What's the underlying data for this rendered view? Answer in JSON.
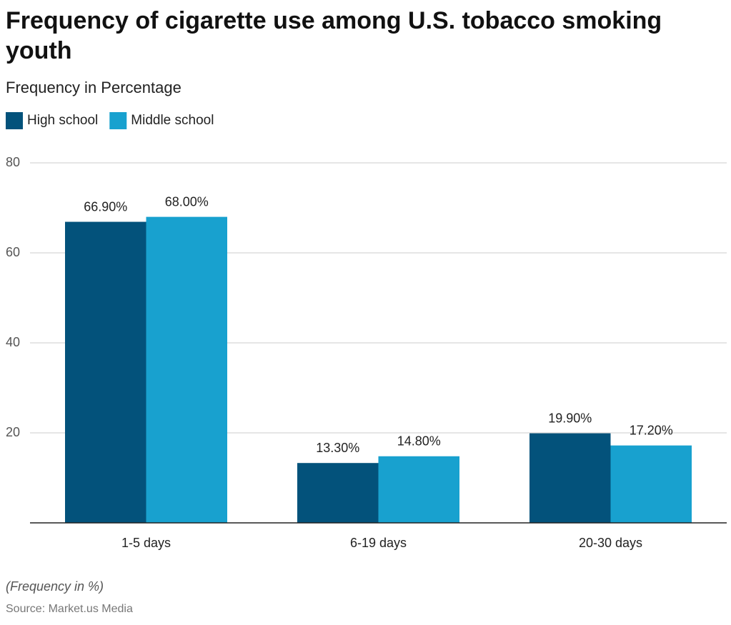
{
  "chart_data": {
    "type": "bar",
    "title": "Frequency of cigarette use among U.S. tobacco smoking youth",
    "subtitle": "Frequency in Percentage",
    "categories": [
      "1-5 days",
      "6-19 days",
      "20-30 days"
    ],
    "series": [
      {
        "name": "High school",
        "color": "#03527b",
        "values": [
          66.9,
          13.3,
          19.9
        ],
        "value_labels": [
          "66.90%",
          "13.30%",
          "19.90%"
        ]
      },
      {
        "name": "Middle school",
        "color": "#18a1cf",
        "values": [
          68.0,
          14.8,
          17.2
        ],
        "value_labels": [
          "68.00%",
          "14.80%",
          "17.20%"
        ]
      }
    ],
    "ylim": [
      0,
      80
    ],
    "yticks": [
      20,
      40,
      60,
      80
    ],
    "grid": true,
    "legend": "top-left",
    "note": "(Frequency in %)",
    "source": "Source: Market.us Media"
  }
}
